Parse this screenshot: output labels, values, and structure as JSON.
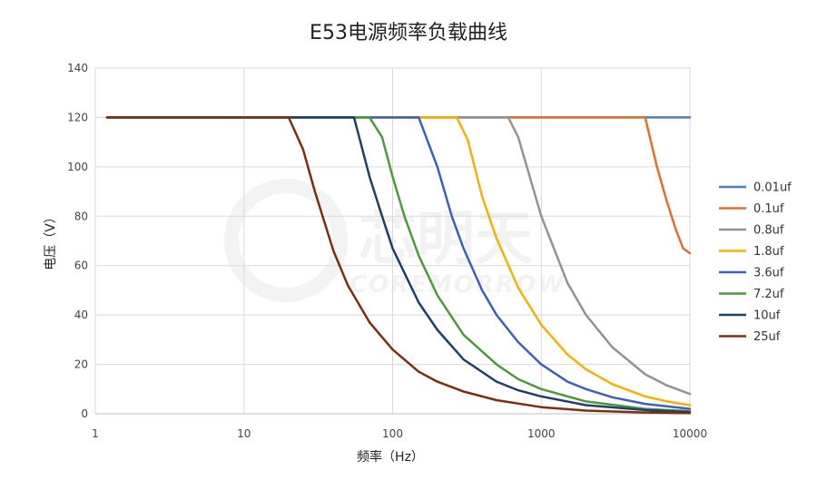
{
  "chart_data": {
    "type": "line",
    "title": "E53电源频率负载曲线",
    "xlabel": "频率（Hz）",
    "ylabel": "电压（V）",
    "x_scale": "log",
    "xlim": [
      1,
      10000
    ],
    "ylim": [
      0,
      140
    ],
    "x_ticks": [
      "1",
      "10",
      "100",
      "1000",
      "10000"
    ],
    "y_ticks": [
      "0",
      "20",
      "40",
      "60",
      "80",
      "100",
      "120",
      "140"
    ],
    "grid": true,
    "legend_position": "right",
    "watermark": {
      "main": "芯明天",
      "sub": "COREMORROW"
    },
    "series": [
      {
        "name": "0.01uf",
        "color": "#4a7ebb",
        "x": [
          1.2,
          10000
        ],
        "y": [
          120,
          120
        ]
      },
      {
        "name": "0.1uf",
        "color": "#e0702d",
        "x": [
          1.2,
          5000,
          6000,
          7000,
          8000,
          9000,
          10000
        ],
        "y": [
          120,
          120,
          100,
          86,
          75,
          67,
          65
        ]
      },
      {
        "name": "0.8uf",
        "color": "#939393",
        "x": [
          1.2,
          600,
          700,
          800,
          1000,
          1500,
          2000,
          3000,
          5000,
          7000,
          10000
        ],
        "y": [
          120,
          120,
          112,
          100,
          80,
          53,
          40,
          27,
          16,
          11.5,
          8
        ]
      },
      {
        "name": "1.8uf",
        "color": "#f2b200",
        "x": [
          1.2,
          270,
          320,
          400,
          500,
          700,
          1000,
          1500,
          2000,
          3000,
          5000,
          7000,
          10000
        ],
        "y": [
          120,
          120,
          111,
          88,
          71,
          51,
          36,
          24,
          18,
          12,
          7,
          5,
          3.5
        ]
      },
      {
        "name": "3.6uf",
        "color": "#3f5fbf",
        "x": [
          1.2,
          150,
          200,
          250,
          300,
          400,
          500,
          700,
          1000,
          1500,
          2000,
          3000,
          5000,
          10000
        ],
        "y": [
          120,
          120,
          100,
          80,
          67,
          50,
          40,
          29,
          20,
          13,
          10,
          6.7,
          4,
          2
        ]
      },
      {
        "name": "7.2uf",
        "color": "#4c9a3c",
        "x": [
          1.2,
          70,
          85,
          100,
          120,
          150,
          200,
          300,
          500,
          700,
          1000,
          2000,
          5000,
          10000
        ],
        "y": [
          120,
          120,
          112,
          96,
          80,
          64,
          48,
          32,
          20,
          14,
          10,
          5,
          2,
          1
        ]
      },
      {
        "name": "10uf",
        "color": "#1f3f66",
        "x": [
          1.2,
          55,
          70,
          85,
          100,
          150,
          200,
          300,
          500,
          700,
          1000,
          2000,
          5000,
          10000
        ],
        "y": [
          120,
          120,
          96,
          80,
          67,
          45,
          34,
          22,
          13,
          9.5,
          7,
          3.5,
          1.5,
          0.7
        ]
      },
      {
        "name": "25uf",
        "color": "#7a3010",
        "x": [
          1.2,
          20,
          25,
          30,
          40,
          50,
          70,
          100,
          150,
          200,
          300,
          500,
          1000,
          2000,
          5000,
          10000
        ],
        "y": [
          120,
          120,
          107,
          90,
          66,
          52,
          37,
          26,
          17,
          13,
          9,
          5.5,
          2.7,
          1.3,
          0.5,
          0.3
        ]
      }
    ]
  }
}
